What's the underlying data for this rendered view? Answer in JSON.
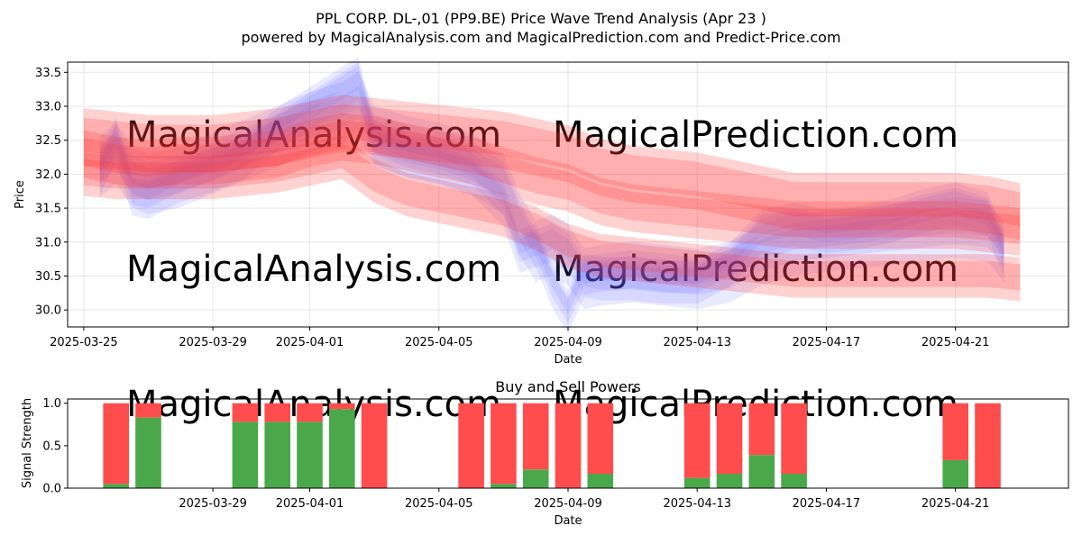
{
  "title_line1": "PPL CORP.  DL-,01 (PP9.BE) Price Wave Trend Analysis (Apr 23 )",
  "title_line2": "powered by MagicalAnalysis.com and MagicalPrediction.com and Predict-Price.com",
  "watermark_top_left": "MagicalAnalysis.com",
  "watermark_top_right": "MagicalPrediction.com",
  "watermark_bottom_left": "MagicalAnalysis.com",
  "watermark_bottom_right": "MagicalPrediction.com",
  "watermark_power_left": "MagicalAnalysis.com",
  "watermark_power_right": "MagicalPrediction.com",
  "colors": {
    "blue_wave": "#5b5bff",
    "red_wave": "#ff3030",
    "buy": "#4aa84a",
    "sell": "#ff4c4c",
    "grid": "#e6e6e6",
    "watermark": "#dcdcdc"
  },
  "chart_data": [
    {
      "type": "area",
      "title": "",
      "xlabel": "Date",
      "ylabel": "Price",
      "x_start": "2025-03-25",
      "x_range_days": [
        -0.5,
        30.5
      ],
      "ylim": [
        29.75,
        33.65
      ],
      "y_ticks": [
        30.0,
        30.5,
        31.0,
        31.5,
        32.0,
        32.5,
        33.0,
        33.5
      ],
      "y_tick_labels": [
        "30.0",
        "30.5",
        "31.0",
        "31.5",
        "32.0",
        "32.5",
        "33.0",
        "33.5"
      ],
      "x_ticks_days": [
        0,
        4,
        7,
        11,
        15,
        19,
        23,
        27
      ],
      "x_tick_labels": [
        "2025-03-25",
        "2025-03-29",
        "2025-04-01",
        "2025-04-05",
        "2025-04-09",
        "2025-04-13",
        "2025-04-17",
        "2025-04-21"
      ],
      "grid": true,
      "series": [
        {
          "name": "blue-wave-main",
          "x": [
            0.5,
            1,
            1.5,
            2,
            3,
            4,
            5,
            6,
            7,
            8,
            8.5,
            9,
            10,
            11,
            12,
            13,
            13.5,
            14,
            14.5,
            15,
            15.5,
            16,
            17,
            18,
            19,
            20,
            21,
            22,
            23,
            24,
            25,
            26,
            27,
            28,
            28.5
          ],
          "y": [
            32.15,
            32.35,
            32.0,
            31.9,
            32.0,
            32.2,
            32.4,
            32.6,
            32.8,
            32.95,
            33.1,
            32.6,
            32.45,
            32.35,
            32.2,
            31.9,
            31.3,
            30.9,
            31.0,
            30.85,
            30.5,
            30.55,
            30.6,
            30.55,
            30.5,
            30.6,
            30.85,
            31.0,
            31.05,
            31.1,
            31.15,
            31.2,
            31.25,
            31.2,
            30.9
          ],
          "band": 0.28
        },
        {
          "name": "blue-wave-alt",
          "x": [
            0.5,
            1,
            1.5,
            2,
            3,
            4,
            5,
            6,
            7,
            8,
            8.5,
            9,
            10,
            11,
            12,
            13,
            13.5,
            14,
            14.5,
            15,
            15.5,
            16,
            17,
            18,
            19,
            20,
            21,
            22,
            23,
            24,
            25,
            26,
            27,
            28,
            28.5
          ],
          "y": [
            32.05,
            32.55,
            31.75,
            31.7,
            31.95,
            32.1,
            32.3,
            32.7,
            33.0,
            33.3,
            33.45,
            32.5,
            32.3,
            32.2,
            32.05,
            31.6,
            30.9,
            31.0,
            30.4,
            30.0,
            30.55,
            30.5,
            30.5,
            30.45,
            30.45,
            30.7,
            31.2,
            31.3,
            31.2,
            31.25,
            31.35,
            31.5,
            31.6,
            31.45,
            30.85
          ],
          "band": 0.2
        },
        {
          "name": "red-wave-main",
          "x": [
            0,
            1,
            2,
            3,
            4,
            5,
            6,
            7,
            8,
            9,
            10,
            11,
            12,
            13,
            14,
            15,
            16,
            17,
            18,
            19,
            20,
            21,
            22,
            23,
            24,
            25,
            26,
            27,
            28,
            29
          ],
          "y": [
            32.3,
            32.2,
            32.15,
            32.2,
            32.2,
            32.25,
            32.3,
            32.45,
            32.55,
            32.5,
            32.4,
            32.3,
            32.2,
            32.05,
            31.9,
            31.8,
            31.6,
            31.5,
            31.45,
            31.4,
            31.35,
            31.3,
            31.25,
            31.25,
            31.25,
            31.25,
            31.25,
            31.25,
            31.2,
            31.15
          ],
          "band": 0.35
        },
        {
          "name": "red-wave-upper",
          "x": [
            0,
            1,
            2,
            3,
            4,
            5,
            6,
            7,
            8,
            9,
            10,
            11,
            12,
            13,
            14,
            15,
            16,
            17,
            18,
            19,
            20,
            21,
            22,
            23,
            24,
            25,
            26,
            27,
            28,
            29
          ],
          "y": [
            32.55,
            32.5,
            32.45,
            32.45,
            32.45,
            32.5,
            32.55,
            32.65,
            32.75,
            32.7,
            32.65,
            32.6,
            32.55,
            32.5,
            32.4,
            32.3,
            32.1,
            32.0,
            31.95,
            31.9,
            31.8,
            31.7,
            31.6,
            31.6,
            31.6,
            31.6,
            31.6,
            31.6,
            31.55,
            31.45
          ],
          "band": 0.42
        },
        {
          "name": "red-wave-lower",
          "x": [
            0,
            1,
            2,
            3,
            4,
            5,
            6,
            7,
            8,
            9,
            10,
            11,
            12,
            13,
            14,
            15,
            16,
            17,
            18,
            19,
            20,
            21,
            22,
            23,
            24,
            25,
            26,
            27,
            28,
            29
          ],
          "y": [
            32.0,
            31.95,
            31.95,
            31.95,
            31.95,
            32.0,
            32.05,
            32.15,
            32.25,
            31.9,
            31.7,
            31.6,
            31.5,
            31.4,
            31.2,
            30.95,
            30.8,
            30.75,
            30.7,
            30.65,
            30.6,
            30.55,
            30.5,
            30.5,
            30.5,
            30.5,
            30.5,
            30.5,
            30.5,
            30.45
          ],
          "band": 0.32
        }
      ]
    },
    {
      "type": "bar",
      "title": "Buy and Sell Powers",
      "xlabel": "Date",
      "ylabel": "Signal Strength",
      "x_start": "2025-03-25",
      "x_range_days": [
        -0.5,
        30.5
      ],
      "ylim": [
        0,
        1.05
      ],
      "y_ticks": [
        0.0,
        0.5,
        1.0
      ],
      "y_tick_labels": [
        "0.0",
        "0.5",
        "1.0"
      ],
      "x_ticks_days": [
        4,
        7,
        11,
        15,
        19,
        23,
        27
      ],
      "x_tick_labels": [
        "2025-03-29",
        "2025-04-01",
        "2025-04-05",
        "2025-04-09",
        "2025-04-13",
        "2025-04-17",
        "2025-04-21"
      ],
      "grid": false,
      "bars_days": [
        1,
        2,
        5,
        6,
        7,
        8,
        9,
        12,
        13,
        14,
        15,
        16,
        19,
        20,
        21,
        22,
        27,
        28
      ],
      "series": [
        {
          "name": "Buy",
          "values": [
            0.05,
            0.83,
            0.78,
            0.78,
            0.78,
            0.93,
            0.0,
            0.0,
            0.05,
            0.22,
            0.0,
            0.17,
            0.12,
            0.17,
            0.39,
            0.17,
            0.33,
            0.0
          ]
        },
        {
          "name": "Sell",
          "values": [
            0.95,
            0.17,
            0.22,
            0.22,
            0.22,
            0.07,
            1.0,
            1.0,
            0.95,
            0.78,
            1.0,
            0.83,
            0.88,
            0.83,
            0.61,
            0.83,
            0.67,
            1.0
          ]
        }
      ]
    }
  ]
}
